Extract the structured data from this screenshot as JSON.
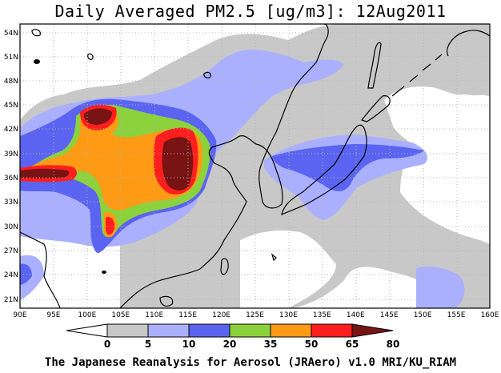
{
  "title": "Daily Averaged PM2.5 [ug/m3]: 12Aug2011",
  "footer": "The Japanese Reanalysis for Aerosol (JRAero) v1.0 MRI/KU_RIAM",
  "map": {
    "lon_range": [
      90,
      160
    ],
    "lat_range": [
      20,
      55
    ],
    "lon_ticks": [
      "90E",
      "95E",
      "100E",
      "105E",
      "110E",
      "115E",
      "120E",
      "125E",
      "130E",
      "135E",
      "140E",
      "145E",
      "150E",
      "155E",
      "160E"
    ],
    "lat_ticks": [
      "54N",
      "51N",
      "48N",
      "45N",
      "42N",
      "39N",
      "36N",
      "33N",
      "30N",
      "27N",
      "24N",
      "21N"
    ],
    "grid": true
  },
  "colorbar": {
    "levels": [
      "0",
      "5",
      "10",
      "20",
      "35",
      "50",
      "65",
      "80"
    ],
    "colors": [
      "#ffffff",
      "#c8c8c8",
      "#aab0ff",
      "#5a64f0",
      "#8cd23c",
      "#ff9a14",
      "#ff1e1e",
      "#781414"
    ]
  }
}
